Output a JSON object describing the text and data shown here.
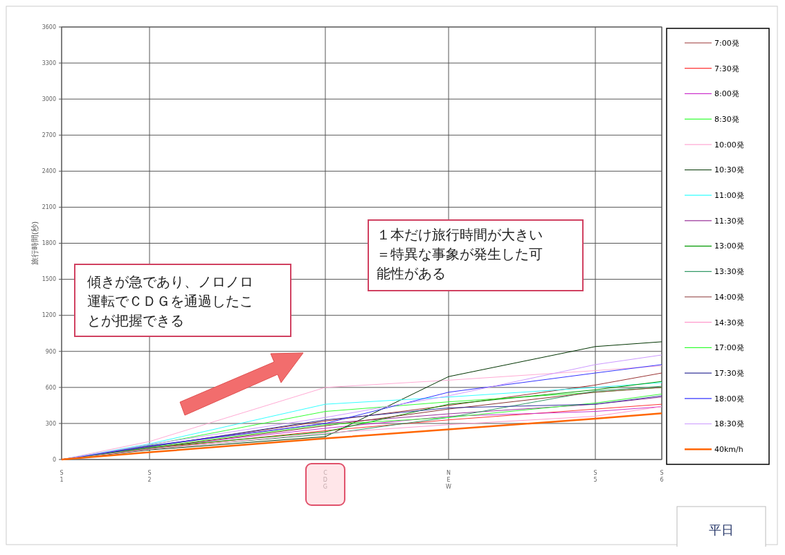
{
  "chart_data": {
    "type": "line",
    "ylabel": "旅行時間(秒)",
    "categories": [
      "S1",
      "S2",
      "CDG",
      "NEW",
      "S5",
      "S6"
    ],
    "ylim": [
      0,
      3600
    ],
    "yticks": [
      0,
      300,
      600,
      900,
      1200,
      1500,
      1800,
      2100,
      2400,
      2700,
      3000,
      3300,
      3600
    ],
    "grid": true,
    "legend": "right",
    "marker": "none",
    "line_style": "solid",
    "series": [
      {
        "name": "7:00発",
        "color": "#993333",
        "values": [
          0,
          110,
          320,
          450,
          620,
          720
        ]
      },
      {
        "name": "7:30発",
        "color": "#ff3333",
        "values": [
          0,
          90,
          240,
          330,
          420,
          460
        ]
      },
      {
        "name": "8:00発",
        "color": "#cc33cc",
        "values": [
          0,
          100,
          260,
          360,
          400,
          440
        ]
      },
      {
        "name": "8:30発",
        "color": "#33ff33",
        "values": [
          0,
          120,
          400,
          480,
          560,
          600
        ]
      },
      {
        "name": "10:00発",
        "color": "#ffaad4",
        "values": [
          0,
          150,
          600,
          660,
          740,
          780
        ]
      },
      {
        "name": "10:30発",
        "color": "#003300",
        "values": [
          0,
          80,
          190,
          690,
          940,
          980
        ]
      },
      {
        "name": "11:00発",
        "color": "#33ffff",
        "values": [
          0,
          130,
          460,
          520,
          600,
          640
        ]
      },
      {
        "name": "11:30発",
        "color": "#993399",
        "values": [
          0,
          110,
          300,
          380,
          460,
          520
        ]
      },
      {
        "name": "13:00発",
        "color": "#009900",
        "values": [
          0,
          100,
          230,
          460,
          580,
          650
        ]
      },
      {
        "name": "13:30発",
        "color": "#339966",
        "values": [
          0,
          90,
          210,
          350,
          570,
          610
        ]
      },
      {
        "name": "14:00発",
        "color": "#883333",
        "values": [
          0,
          95,
          280,
          420,
          560,
          600
        ]
      },
      {
        "name": "14:30発",
        "color": "#ff99cc",
        "values": [
          0,
          85,
          220,
          290,
          360,
          440
        ]
      },
      {
        "name": "17:00発",
        "color": "#33ff33",
        "values": [
          0,
          100,
          290,
          350,
          470,
          545
        ]
      },
      {
        "name": "17:30発",
        "color": "#333399",
        "values": [
          0,
          105,
          330,
          430,
          460,
          530
        ]
      },
      {
        "name": "18:00発",
        "color": "#3333ff",
        "values": [
          0,
          115,
          300,
          560,
          720,
          790
        ]
      },
      {
        "name": "18:30発",
        "color": "#cc99ff",
        "values": [
          0,
          125,
          350,
          530,
          790,
          870
        ]
      },
      {
        "name": "40km/h",
        "color": "#ff6600",
        "values": [
          0,
          60,
          175,
          250,
          340,
          385
        ]
      }
    ],
    "annotations": [
      "傾きが急であり、ノロノロ運転でＣＤＧを通過したことが把握できる",
      "１本だけ旅行時間が大きい＝特異な事象が発生した可能性がある",
      "平日"
    ]
  }
}
